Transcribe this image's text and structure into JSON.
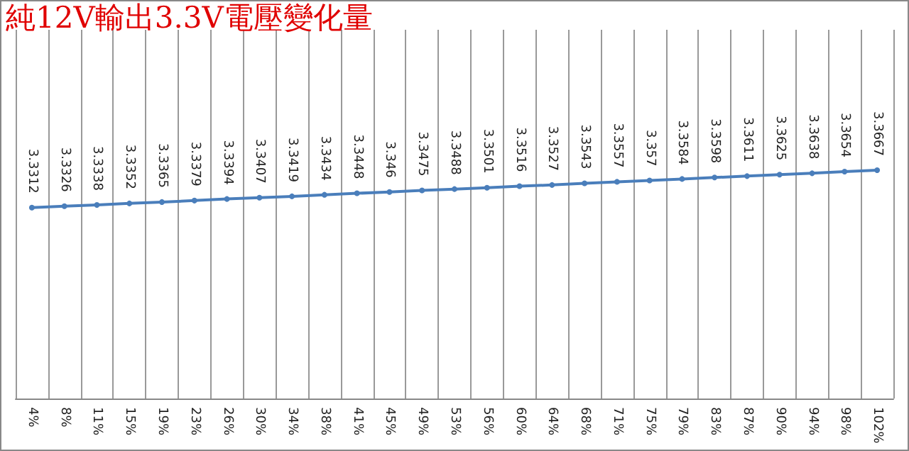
{
  "chart_data": {
    "type": "line",
    "title": "純12V輸出3.3V電壓變化量",
    "categories": [
      "4%",
      "8%",
      "11%",
      "15%",
      "19%",
      "23%",
      "26%",
      "30%",
      "34%",
      "38%",
      "41%",
      "45%",
      "49%",
      "53%",
      "56%",
      "60%",
      "64%",
      "68%",
      "71%",
      "75%",
      "79%",
      "83%",
      "87%",
      "90%",
      "94%",
      "98%",
      "102%"
    ],
    "series": [
      {
        "color": "#4a7ebb",
        "values": [
          3.3312,
          3.3326,
          3.3338,
          3.3352,
          3.3365,
          3.3379,
          3.3394,
          3.3407,
          3.3419,
          3.3434,
          3.3448,
          3.346,
          3.3475,
          3.3488,
          3.3501,
          3.3516,
          3.3527,
          3.3543,
          3.3557,
          3.357,
          3.3584,
          3.3598,
          3.3611,
          3.3625,
          3.3638,
          3.3654,
          3.3667
        ]
      }
    ],
    "data_labels": true,
    "grid": "x",
    "marker": "circle",
    "line_style": "solid",
    "tick_labels": "x"
  }
}
